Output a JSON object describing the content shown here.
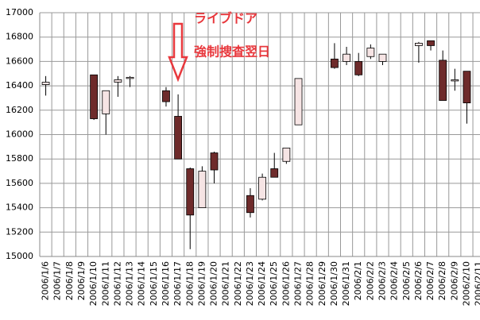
{
  "chart_data": {
    "type": "candlestick",
    "categories": [
      "2006/1/6",
      "2006/1/7",
      "2006/1/8",
      "2006/1/9",
      "2006/1/10",
      "2006/1/11",
      "2006/1/12",
      "2006/1/13",
      "2006/1/14",
      "2006/1/15",
      "2006/1/16",
      "2006/1/17",
      "2006/1/18",
      "2006/1/19",
      "2006/1/20",
      "2006/1/21",
      "2006/1/22",
      "2006/1/23",
      "2006/1/24",
      "2006/1/25",
      "2006/1/26",
      "2006/1/27",
      "2006/1/28",
      "2006/1/29",
      "2006/1/30",
      "2006/1/31",
      "2006/2/1",
      "2006/2/2",
      "2006/2/3",
      "2006/2/4",
      "2006/2/5",
      "2006/2/6",
      "2006/2/7",
      "2006/2/8",
      "2006/2/9",
      "2006/2/10",
      "2006/2/11"
    ],
    "open": [
      16410,
      null,
      null,
      null,
      16490,
      16170,
      16430,
      16460,
      null,
      null,
      16360,
      16150,
      15720,
      15400,
      15850,
      null,
      null,
      15500,
      15470,
      15720,
      15780,
      16080,
      null,
      null,
      16620,
      16600,
      16600,
      16640,
      16600,
      null,
      null,
      16730,
      16770,
      16610,
      16440,
      16520,
      null
    ],
    "high": [
      16480,
      null,
      null,
      null,
      16490,
      16360,
      16480,
      16480,
      null,
      null,
      16390,
      16330,
      15730,
      15740,
      15860,
      null,
      null,
      15560,
      15680,
      15850,
      15890,
      16460,
      null,
      null,
      16750,
      16720,
      16670,
      16740,
      16660,
      null,
      null,
      16760,
      16770,
      16690,
      16540,
      16520,
      null
    ],
    "low": [
      16320,
      null,
      null,
      null,
      16120,
      16000,
      16310,
      16390,
      null,
      null,
      16230,
      15800,
      15060,
      15400,
      15600,
      null,
      null,
      15320,
      15460,
      15650,
      15760,
      16080,
      null,
      null,
      16540,
      16570,
      16480,
      16620,
      16570,
      null,
      null,
      16590,
      16690,
      16280,
      16360,
      16090,
      null
    ],
    "close": [
      16430,
      null,
      null,
      null,
      16130,
      16360,
      16450,
      16470,
      null,
      null,
      16270,
      15800,
      15340,
      15700,
      15710,
      null,
      null,
      15360,
      15650,
      15650,
      15890,
      16460,
      null,
      null,
      16550,
      16660,
      16490,
      16710,
      16660,
      null,
      null,
      16750,
      16730,
      16280,
      16450,
      16260,
      null
    ],
    "up_color": "#f6e4e4",
    "down_color": "#6e2b2b",
    "ylim": [
      15000,
      17000
    ],
    "yticks": [
      15000,
      15200,
      15400,
      15600,
      15800,
      16000,
      16200,
      16400,
      16600,
      16800,
      17000
    ],
    "grid": true,
    "annotations": [
      "ライブドア",
      "強制捜査翌日"
    ]
  }
}
